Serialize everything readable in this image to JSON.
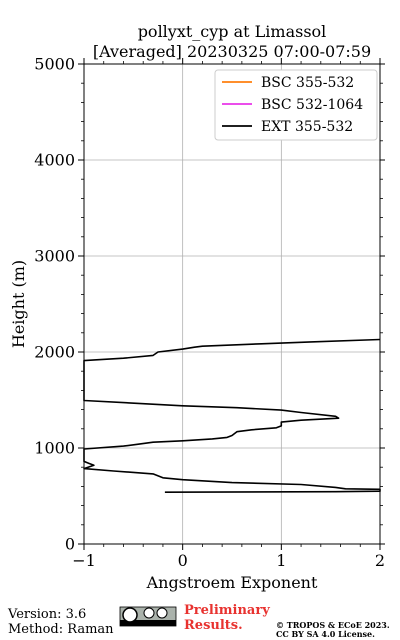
{
  "chart_data": {
    "type": "line",
    "title": "pollyxt_cyp at Limassol",
    "subtitle": "[Averaged] 20230325 07:00-07:59",
    "xlabel": "Angstroem Exponent",
    "ylabel": "Height (m)",
    "xlim": [
      -1,
      2
    ],
    "ylim": [
      0,
      5000
    ],
    "xticks": [
      "-1",
      "0",
      "1",
      "2"
    ],
    "yticks": [
      "0",
      "1000",
      "2000",
      "3000",
      "4000",
      "5000"
    ],
    "grid": true,
    "legend_position": "top-right",
    "series": [
      {
        "name": "BSC 355-532",
        "color": "#ff7f0e",
        "points": []
      },
      {
        "name": "BSC 532-1064",
        "color": "#e834e8",
        "points": []
      },
      {
        "name": "EXT 355-532",
        "color": "#000000",
        "points": [
          [
            -0.18,
            540
          ],
          [
            1.55,
            545
          ],
          [
            2.0,
            550
          ],
          [
            2.0,
            570
          ],
          [
            1.65,
            575
          ],
          [
            1.55,
            590
          ],
          [
            1.2,
            620
          ],
          [
            0.5,
            640
          ],
          [
            0.0,
            670
          ],
          [
            -0.2,
            690
          ],
          [
            -0.3,
            730
          ],
          [
            -0.7,
            760
          ],
          [
            -1.0,
            785
          ],
          [
            -0.9,
            820
          ],
          [
            -0.95,
            840
          ],
          [
            -1.0,
            860
          ],
          [
            -1.0,
            990
          ],
          [
            -0.6,
            1020
          ],
          [
            -0.45,
            1040
          ],
          [
            -0.3,
            1060
          ],
          [
            0.0,
            1075
          ],
          [
            0.3,
            1095
          ],
          [
            0.45,
            1110
          ],
          [
            0.5,
            1130
          ],
          [
            0.55,
            1170
          ],
          [
            0.7,
            1190
          ],
          [
            0.95,
            1210
          ],
          [
            1.0,
            1230
          ],
          [
            1.0,
            1270
          ],
          [
            1.2,
            1290
          ],
          [
            1.58,
            1310
          ],
          [
            1.55,
            1330
          ],
          [
            1.2,
            1370
          ],
          [
            1.0,
            1395
          ],
          [
            0.55,
            1420
          ],
          [
            0.0,
            1440
          ],
          [
            -1.0,
            1495
          ],
          [
            -1.0,
            1910
          ],
          [
            -0.6,
            1935
          ],
          [
            -0.3,
            1965
          ],
          [
            -0.25,
            2000
          ],
          [
            0.0,
            2030
          ],
          [
            0.12,
            2050
          ],
          [
            0.2,
            2060
          ],
          [
            0.8,
            2085
          ],
          [
            1.3,
            2105
          ],
          [
            2.0,
            2130
          ]
        ]
      }
    ]
  },
  "footer": {
    "version": "Version: 3.6",
    "method": "Method: Raman",
    "preliminary_line1": "Preliminary",
    "preliminary_line2": "Results.",
    "copyright_line1": "© TROPOS & ECoE 2023.",
    "copyright_line2": "CC BY SA 4.0 License."
  }
}
